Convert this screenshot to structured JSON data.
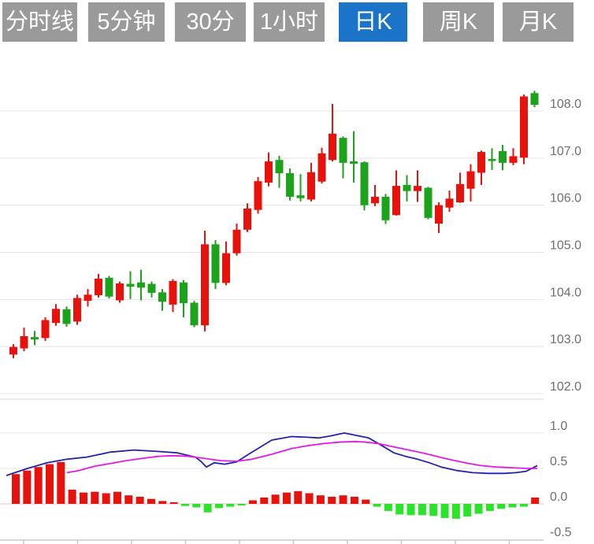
{
  "toolbar": {
    "tabs": [
      {
        "id": "timeshare",
        "label": "分时线",
        "active": false
      },
      {
        "id": "5min",
        "label": "5分钟",
        "active": false
      },
      {
        "id": "30min",
        "label": "30分钟",
        "active": false
      },
      {
        "id": "1hour",
        "label": "1小时",
        "active": false
      },
      {
        "id": "daily",
        "label": "日K",
        "active": true
      },
      {
        "id": "weekly",
        "label": "周K",
        "active": false
      },
      {
        "id": "monthly",
        "label": "月K",
        "active": false
      }
    ]
  },
  "colors": {
    "tab_bg": "#9a9a9a",
    "tab_active_bg": "#1b74c8",
    "tab_text": "#ffffff",
    "candle_up": "#e8120c",
    "candle_down": "#1ba31b",
    "hist_up": "#e8120c",
    "hist_down": "#2ce32c",
    "dif_line": "#2222b2",
    "dea_line": "#e41ae4",
    "grid": "#e3e3e3",
    "zero_line": "#f2bcbc",
    "axis": "#c8c8c8",
    "label_text": "#6f6f6f"
  },
  "price_axis": {
    "labels": [
      "108.0",
      "107.0",
      "106.0",
      "105.0",
      "104.0",
      "103.0",
      "102.0"
    ],
    "values": [
      108,
      107,
      106,
      105,
      104,
      103,
      102
    ]
  },
  "indicator_axis": {
    "labels": [
      "1.0",
      "0.5",
      "0.0",
      "-0.5"
    ],
    "values": [
      1.0,
      0.5,
      0.0,
      -0.5
    ]
  },
  "chart_data": {
    "type": "candlestick_with_macd",
    "title": "",
    "ylabel": "price",
    "price_ylim": [
      102.0,
      108.0
    ],
    "indicator_ylim": [
      -0.5,
      1.0
    ],
    "grid": true,
    "up_color_convention": "red-up-green-down",
    "candles": [
      {
        "o": 102.83,
        "h": 103.05,
        "l": 102.75,
        "c": 102.99
      },
      {
        "o": 102.96,
        "h": 103.4,
        "l": 102.9,
        "c": 103.22
      },
      {
        "o": 103.2,
        "h": 103.33,
        "l": 103.03,
        "c": 103.15
      },
      {
        "o": 103.18,
        "h": 103.62,
        "l": 103.12,
        "c": 103.56
      },
      {
        "o": 103.5,
        "h": 103.9,
        "l": 103.44,
        "c": 103.8
      },
      {
        "o": 103.79,
        "h": 103.85,
        "l": 103.42,
        "c": 103.48
      },
      {
        "o": 103.53,
        "h": 104.1,
        "l": 103.46,
        "c": 104.03
      },
      {
        "o": 103.97,
        "h": 104.22,
        "l": 103.85,
        "c": 104.1
      },
      {
        "o": 104.09,
        "h": 104.54,
        "l": 104.04,
        "c": 104.44
      },
      {
        "o": 104.46,
        "h": 104.5,
        "l": 104.02,
        "c": 104.06
      },
      {
        "o": 103.98,
        "h": 104.38,
        "l": 103.93,
        "c": 104.34
      },
      {
        "o": 104.33,
        "h": 104.6,
        "l": 104.01,
        "c": 104.27
      },
      {
        "o": 104.36,
        "h": 104.63,
        "l": 103.98,
        "c": 104.25
      },
      {
        "o": 104.33,
        "h": 104.38,
        "l": 104.04,
        "c": 104.14
      },
      {
        "o": 104.15,
        "h": 104.22,
        "l": 103.76,
        "c": 103.95
      },
      {
        "o": 103.89,
        "h": 104.43,
        "l": 103.73,
        "c": 104.39
      },
      {
        "o": 104.36,
        "h": 104.41,
        "l": 103.62,
        "c": 103.92
      },
      {
        "o": 103.93,
        "h": 103.97,
        "l": 103.41,
        "c": 103.45
      },
      {
        "o": 103.45,
        "h": 105.46,
        "l": 103.32,
        "c": 105.17
      },
      {
        "o": 105.17,
        "h": 105.26,
        "l": 104.22,
        "c": 104.35
      },
      {
        "o": 104.35,
        "h": 105.23,
        "l": 104.3,
        "c": 104.98
      },
      {
        "o": 104.98,
        "h": 105.61,
        "l": 104.93,
        "c": 105.48
      },
      {
        "o": 105.48,
        "h": 106.04,
        "l": 105.43,
        "c": 105.93
      },
      {
        "o": 105.9,
        "h": 106.6,
        "l": 105.82,
        "c": 106.51
      },
      {
        "o": 106.48,
        "h": 107.12,
        "l": 106.4,
        "c": 106.93
      },
      {
        "o": 106.96,
        "h": 107.05,
        "l": 106.37,
        "c": 106.68
      },
      {
        "o": 106.68,
        "h": 106.78,
        "l": 106.1,
        "c": 106.18
      },
      {
        "o": 106.21,
        "h": 106.66,
        "l": 106.08,
        "c": 106.15
      },
      {
        "o": 106.12,
        "h": 106.9,
        "l": 106.08,
        "c": 106.7
      },
      {
        "o": 106.5,
        "h": 107.22,
        "l": 106.46,
        "c": 107.1
      },
      {
        "o": 106.96,
        "h": 108.15,
        "l": 106.93,
        "c": 107.52
      },
      {
        "o": 107.43,
        "h": 107.46,
        "l": 106.57,
        "c": 106.9
      },
      {
        "o": 106.93,
        "h": 107.57,
        "l": 106.48,
        "c": 106.88
      },
      {
        "o": 106.91,
        "h": 106.93,
        "l": 105.89,
        "c": 106.0
      },
      {
        "o": 106.04,
        "h": 106.43,
        "l": 105.98,
        "c": 106.18
      },
      {
        "o": 106.18,
        "h": 106.24,
        "l": 105.6,
        "c": 105.68
      },
      {
        "o": 105.79,
        "h": 106.74,
        "l": 105.78,
        "c": 106.41
      },
      {
        "o": 106.43,
        "h": 106.64,
        "l": 106.08,
        "c": 106.3
      },
      {
        "o": 106.3,
        "h": 106.74,
        "l": 106.07,
        "c": 106.41
      },
      {
        "o": 106.37,
        "h": 106.39,
        "l": 105.7,
        "c": 105.73
      },
      {
        "o": 105.61,
        "h": 106.06,
        "l": 105.41,
        "c": 106.0
      },
      {
        "o": 105.95,
        "h": 106.31,
        "l": 105.86,
        "c": 106.14
      },
      {
        "o": 106.06,
        "h": 106.69,
        "l": 106.05,
        "c": 106.45
      },
      {
        "o": 106.35,
        "h": 106.87,
        "l": 106.08,
        "c": 106.72
      },
      {
        "o": 106.69,
        "h": 107.16,
        "l": 106.43,
        "c": 107.13
      },
      {
        "o": 106.98,
        "h": 107.21,
        "l": 106.75,
        "c": 106.94
      },
      {
        "o": 107.15,
        "h": 107.28,
        "l": 106.74,
        "c": 106.9
      },
      {
        "o": 106.9,
        "h": 107.21,
        "l": 106.85,
        "c": 107.04
      },
      {
        "o": 107.01,
        "h": 108.35,
        "l": 106.87,
        "c": 108.31
      },
      {
        "o": 108.38,
        "h": 108.43,
        "l": 108.08,
        "c": 108.13
      }
    ],
    "macd": {
      "histogram": [
        0.42,
        0.47,
        0.52,
        0.56,
        0.59,
        0.2,
        0.16,
        0.17,
        0.15,
        0.17,
        0.12,
        0.1,
        0.07,
        0.04,
        0.02,
        -0.03,
        -0.05,
        -0.12,
        -0.06,
        -0.04,
        -0.02,
        0.05,
        0.09,
        0.13,
        0.16,
        0.18,
        0.15,
        0.12,
        0.1,
        0.12,
        0.1,
        0.06,
        -0.04,
        -0.1,
        -0.15,
        -0.16,
        -0.16,
        -0.17,
        -0.2,
        -0.21,
        -0.18,
        -0.14,
        -0.1,
        -0.07,
        -0.05,
        -0.04,
        0.09
      ],
      "dif": [
        [
          8,
          0.4
        ],
        [
          35,
          0.5
        ],
        [
          60,
          0.58
        ],
        [
          85,
          0.63
        ],
        [
          110,
          0.66
        ],
        [
          140,
          0.73
        ],
        [
          170,
          0.76
        ],
        [
          200,
          0.74
        ],
        [
          225,
          0.72
        ],
        [
          248,
          0.66
        ],
        [
          255,
          0.6
        ],
        [
          262,
          0.52
        ],
        [
          272,
          0.58
        ],
        [
          285,
          0.56
        ],
        [
          300,
          0.59
        ],
        [
          320,
          0.73
        ],
        [
          345,
          0.9
        ],
        [
          370,
          0.95
        ],
        [
          390,
          0.94
        ],
        [
          405,
          0.93
        ],
        [
          420,
          0.96
        ],
        [
          437,
          1.0
        ],
        [
          455,
          0.96
        ],
        [
          468,
          0.93
        ],
        [
          485,
          0.82
        ],
        [
          500,
          0.72
        ],
        [
          515,
          0.67
        ],
        [
          530,
          0.63
        ],
        [
          545,
          0.58
        ],
        [
          560,
          0.52
        ],
        [
          580,
          0.47
        ],
        [
          600,
          0.44
        ],
        [
          620,
          0.43
        ],
        [
          640,
          0.43
        ],
        [
          655,
          0.44
        ],
        [
          668,
          0.46
        ],
        [
          682,
          0.54
        ]
      ],
      "dea": [
        [
          85,
          0.44
        ],
        [
          100,
          0.47
        ],
        [
          120,
          0.53
        ],
        [
          140,
          0.57
        ],
        [
          160,
          0.61
        ],
        [
          180,
          0.64
        ],
        [
          200,
          0.67
        ],
        [
          220,
          0.68
        ],
        [
          240,
          0.67
        ],
        [
          260,
          0.64
        ],
        [
          280,
          0.61
        ],
        [
          300,
          0.6
        ],
        [
          320,
          0.63
        ],
        [
          345,
          0.7
        ],
        [
          370,
          0.78
        ],
        [
          390,
          0.82
        ],
        [
          410,
          0.85
        ],
        [
          430,
          0.87
        ],
        [
          450,
          0.88
        ],
        [
          465,
          0.87
        ],
        [
          480,
          0.85
        ],
        [
          510,
          0.78
        ],
        [
          540,
          0.71
        ],
        [
          565,
          0.64
        ],
        [
          590,
          0.58
        ],
        [
          610,
          0.54
        ],
        [
          630,
          0.52
        ],
        [
          650,
          0.51
        ],
        [
          668,
          0.5
        ],
        [
          682,
          0.5
        ]
      ]
    }
  }
}
